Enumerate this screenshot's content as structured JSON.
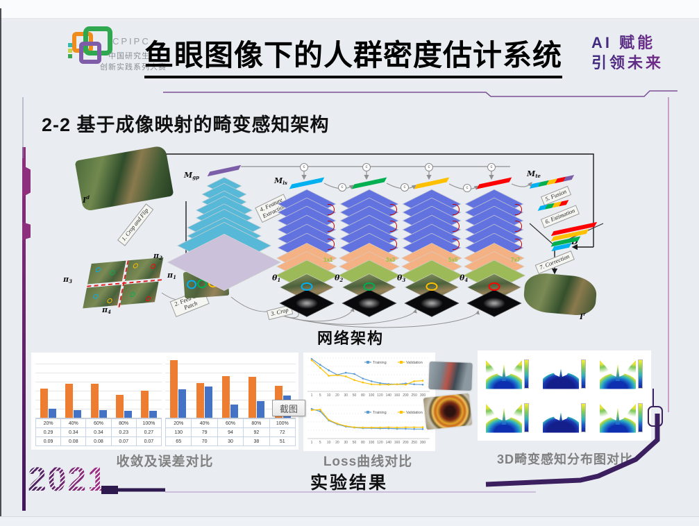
{
  "window": {
    "tooltip": "截图"
  },
  "header": {
    "logo": {
      "acronym": "CPIPC",
      "org_line1": "中国研究生",
      "org_line2": "创新实践系列大赛"
    },
    "title": "鱼眼图像下的人群密度估计系统",
    "slogan_line1": "AI 赋能",
    "slogan_line2": "引领未来"
  },
  "section_title": "2-2 基于成像映射的畸变感知架构",
  "diagram": {
    "caption": "网络架构",
    "input_image": {
      "base": "I",
      "sup": "d"
    },
    "output_image": {
      "base": "I",
      "sup": "r"
    },
    "modules": {
      "gp": {
        "base": "M",
        "sub": "gp"
      },
      "ls": {
        "base": "M",
        "sub": "ls"
      },
      "te": {
        "base": "M",
        "sub": "te"
      },
      "density": {
        "base": "D",
        "sub": ""
      }
    },
    "patches": {
      "top": {
        "base": "π",
        "sub": "2"
      },
      "right": {
        "base": "π",
        "sub": "1"
      },
      "left": {
        "base": "π",
        "sub": "3"
      },
      "bottom": {
        "base": "π",
        "sub": "4"
      },
      "fed": {
        "base": "π",
        "sub": "1"
      }
    },
    "steps": {
      "s1": "1. Crop and Flip",
      "s2": "2. Feed One\nPatch",
      "s3": "3. Crop",
      "s4": "4. Feature\nExtraction",
      "s5": "5. Fusion",
      "s6": "6. Estimation",
      "s7": "7. Correction"
    },
    "concat_symbol": "c",
    "towers": [
      {
        "theta_base": "θ",
        "theta_sub": "1",
        "kernel": "1x1",
        "bar_color": "#00B0F0",
        "ring_color": "#00B0F0"
      },
      {
        "theta_base": "θ",
        "theta_sub": "2",
        "kernel": "3x3",
        "bar_color": "#00B050",
        "ring_color": "#00B050"
      },
      {
        "theta_base": "θ",
        "theta_sub": "3",
        "kernel": "5x5",
        "bar_color": "#FFC000",
        "ring_color": "#FFC000"
      },
      {
        "theta_base": "θ",
        "theta_sub": "4",
        "kernel": "7x7",
        "bar_color": "#FF0000",
        "ring_color": "#FF0000"
      }
    ]
  },
  "results": {
    "bar_caption": "收敛及误差对比",
    "loss_caption": "Loss曲线对比",
    "surface_caption": "3D畸变感知分布图对比",
    "caption": "实验结果",
    "surfaces": [
      "bright",
      "dark",
      "bright",
      "bright",
      "dark",
      "bright"
    ]
  },
  "year": "2021",
  "chart_data": [
    {
      "type": "bar",
      "panel": "收敛及误差对比 (左图)",
      "categories": [
        "20%",
        "40%",
        "60%",
        "80%",
        "100%"
      ],
      "series": [
        {
          "name": "series-orange",
          "color": "#ED7D31",
          "values": [
            0.29,
            0.34,
            0.34,
            0.23,
            0.27
          ]
        },
        {
          "name": "series-blue",
          "color": "#4472C4",
          "values": [
            0.09,
            0.08,
            0.08,
            0.07,
            0.07
          ]
        }
      ],
      "ylim": [
        0,
        0.6
      ],
      "grid": true,
      "table": true,
      "legend_position": "none"
    },
    {
      "type": "bar",
      "panel": "收敛及误差对比 (右图)",
      "categories": [
        "20%",
        "40%",
        "60%",
        "80%",
        "100%"
      ],
      "series": [
        {
          "name": "series-orange",
          "color": "#ED7D31",
          "values": [
            130,
            79,
            94,
            92,
            72
          ]
        },
        {
          "name": "series-blue",
          "color": "#4472C4",
          "values": [
            65,
            70,
            30,
            38,
            51
          ]
        }
      ],
      "ylim": [
        0,
        135
      ],
      "grid": true,
      "table": true,
      "legend_position": "none"
    },
    {
      "type": "line",
      "panel": "Loss曲线对比 (上图)",
      "x": [
        1,
        5,
        10,
        20,
        30,
        50,
        80,
        100,
        120,
        140,
        160,
        200,
        250,
        300
      ],
      "series": [
        {
          "name": "Training",
          "color": "#5B9BD5",
          "values": [
            0.97,
            0.78,
            0.6,
            0.45,
            0.52,
            0.48,
            0.33,
            0.24,
            0.18,
            0.15,
            0.14,
            0.17,
            0.14,
            0.13
          ]
        },
        {
          "name": "Validation",
          "color": "#FFC000",
          "values": [
            0.93,
            0.68,
            0.42,
            0.44,
            0.4,
            0.28,
            0.2,
            0.14,
            0.13,
            0.13,
            0.14,
            0.13,
            0.24,
            0.26
          ]
        }
      ],
      "legend_position": "top-right",
      "grid": true
    },
    {
      "type": "line",
      "panel": "Loss曲线对比 (下图)",
      "x": [
        1,
        5,
        10,
        20,
        30,
        50,
        80,
        100,
        120,
        140,
        160,
        200,
        250,
        300
      ],
      "series": [
        {
          "name": "Training",
          "color": "#5B9BD5",
          "values": [
            0.88,
            0.8,
            0.5,
            0.38,
            0.3,
            0.27,
            0.25,
            0.25,
            0.24,
            0.24,
            0.23,
            0.23,
            0.22,
            0.22
          ]
        },
        {
          "name": "Validation",
          "color": "#FFC000",
          "values": [
            0.84,
            0.86,
            0.52,
            0.4,
            0.32,
            0.28,
            0.27,
            0.27,
            0.27,
            0.28,
            0.27,
            0.28,
            0.28,
            0.28
          ]
        }
      ],
      "legend_position": "middle-right",
      "grid": true
    }
  ]
}
